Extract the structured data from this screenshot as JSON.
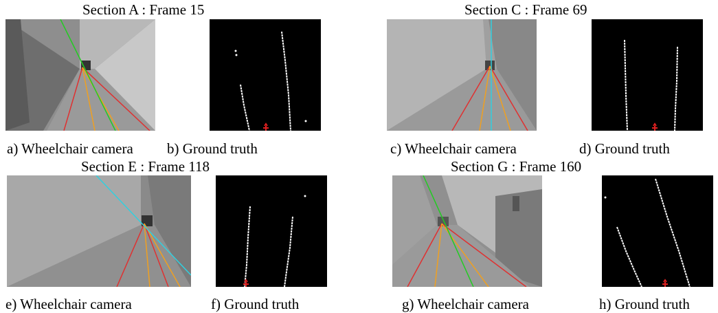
{
  "figure": {
    "groups": [
      {
        "title": "Section A : Frame 15",
        "camera_caption": "a) Wheelchair camera",
        "truth_caption": "b) Ground truth"
      },
      {
        "title": "Section C : Frame 69",
        "camera_caption": "c) Wheelchair camera",
        "truth_caption": "d) Ground truth"
      },
      {
        "title": "Section E : Frame 118",
        "camera_caption": "e) Wheelchair camera",
        "truth_caption": "f) Ground truth"
      },
      {
        "title": "Section G : Frame 160",
        "camera_caption": "g) Wheelchair camera",
        "truth_caption": "h) Ground truth"
      }
    ],
    "line_colors": {
      "red": "#e03030",
      "orange": "#f0a020",
      "green": "#22cc22",
      "cyan": "#30d0e0",
      "marker": "#e02020"
    }
  }
}
